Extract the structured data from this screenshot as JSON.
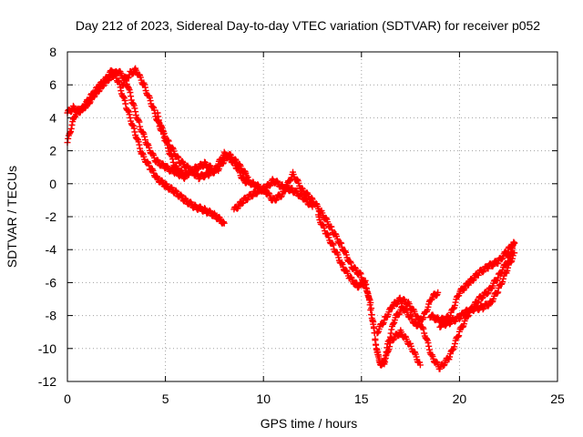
{
  "chart_data": {
    "type": "scatter",
    "title": "Day 212 of 2023, Sidereal Day-to-day VTEC variation (SDTVAR) for receiver p052",
    "xlabel": "GPS time / hours",
    "ylabel": "SDTVAR / TECUs",
    "xlim": [
      0,
      25
    ],
    "ylim": [
      -12,
      8
    ],
    "xticks": [
      0,
      5,
      10,
      15,
      20,
      25
    ],
    "yticks": [
      -12,
      -10,
      -8,
      -6,
      -4,
      -2,
      0,
      2,
      4,
      6,
      8
    ],
    "xtick_labels": [
      "0",
      "5",
      "10",
      "15",
      "20",
      "25"
    ],
    "ytick_labels": [
      "-12",
      "-10",
      "-8",
      "-6",
      "-4",
      "-2",
      "0",
      "2",
      "4",
      "6",
      "8"
    ],
    "grid": true,
    "marker": "+",
    "color": "#ff0000",
    "series": [
      {
        "name": "track-1",
        "x": [
          0.0,
          0.2,
          0.4,
          0.8,
          1.2,
          1.6,
          2.0,
          2.3,
          2.6,
          3.0,
          3.4,
          3.8,
          4.2,
          4.6,
          5.0,
          5.5,
          6.0,
          6.5,
          7.0,
          7.5,
          8.0
        ],
        "y": [
          2.5,
          3.4,
          4.2,
          4.6,
          5.3,
          5.9,
          6.4,
          6.9,
          6.2,
          4.7,
          3.3,
          1.8,
          1.0,
          0.3,
          -0.1,
          -0.5,
          -1.0,
          -1.4,
          -1.6,
          -1.9,
          -2.4
        ]
      },
      {
        "name": "track-2",
        "x": [
          0.0,
          0.3,
          0.6,
          1.0,
          1.4,
          1.8,
          2.2,
          2.6,
          3.0,
          3.3,
          3.7,
          4.1,
          4.5,
          5.0,
          5.5,
          6.0
        ],
        "y": [
          4.3,
          4.6,
          4.4,
          4.8,
          5.4,
          6.0,
          6.5,
          6.8,
          6.3,
          5.0,
          3.5,
          2.3,
          1.4,
          1.0,
          0.7,
          0.4
        ]
      },
      {
        "name": "track-3",
        "x": [
          2.8,
          3.2,
          3.5,
          3.9,
          4.3,
          4.7,
          5.2,
          5.7,
          6.2,
          6.7,
          7.2,
          7.7,
          8.2,
          8.7,
          9.2
        ],
        "y": [
          6.0,
          6.7,
          6.9,
          6.0,
          4.8,
          3.5,
          2.4,
          1.4,
          0.9,
          0.4,
          0.6,
          0.9,
          1.8,
          1.2,
          0.4
        ]
      },
      {
        "name": "track-4",
        "x": [
          4.6,
          5.0,
          5.5,
          6.0,
          6.5,
          7.0,
          7.5,
          8.0,
          8.5,
          9.0,
          9.5,
          10.0,
          10.5,
          11.0,
          11.5,
          12.0,
          12.5
        ],
        "y": [
          4.2,
          2.6,
          1.0,
          0.5,
          0.9,
          1.2,
          0.8,
          1.8,
          1.3,
          0.2,
          0.0,
          -0.4,
          0.2,
          -0.2,
          -0.4,
          -0.8,
          -1.4
        ]
      },
      {
        "name": "track-5",
        "x": [
          8.5,
          9.0,
          9.5,
          10.0,
          10.5,
          11.0,
          11.5,
          12.0,
          12.5,
          13.0,
          13.5,
          14.0,
          14.5,
          15.0,
          15.3,
          15.6,
          15.8,
          16.0,
          16.2,
          16.5,
          17.0,
          17.5,
          18.0
        ],
        "y": [
          -1.6,
          -1.0,
          -0.6,
          -0.3,
          -1.0,
          -0.6,
          0.6,
          -0.4,
          -1.0,
          -1.8,
          -2.8,
          -3.8,
          -5.0,
          -5.6,
          -6.5,
          -8.5,
          -10.2,
          -11.0,
          -10.8,
          -9.5,
          -9.0,
          -9.8,
          -11.0
        ]
      },
      {
        "name": "track-6",
        "x": [
          12.8,
          13.2,
          13.6,
          14.0,
          14.4,
          14.8,
          15.2,
          15.5,
          15.7,
          15.9,
          16.1,
          16.4,
          16.7,
          17.1,
          17.5,
          17.8,
          18.2,
          18.6,
          18.9
        ],
        "y": [
          -2.0,
          -3.0,
          -3.9,
          -4.9,
          -5.7,
          -6.2,
          -6.0,
          -7.5,
          -9.5,
          -10.8,
          -11.0,
          -9.5,
          -8.2,
          -7.5,
          -8.1,
          -8.6,
          -8.0,
          -6.9,
          -6.6
        ]
      },
      {
        "name": "track-7",
        "x": [
          15.8,
          16.2,
          16.6,
          17.0,
          17.4,
          17.8,
          18.2,
          18.6,
          19.0,
          19.5,
          20.0,
          20.5,
          21.0,
          21.5,
          22.0,
          22.5,
          22.8
        ],
        "y": [
          -9.0,
          -8.2,
          -7.4,
          -7.0,
          -7.3,
          -8.0,
          -9.0,
          -10.5,
          -11.2,
          -10.5,
          -9.0,
          -7.8,
          -7.0,
          -6.5,
          -5.6,
          -4.6,
          -3.6
        ]
      },
      {
        "name": "track-8",
        "x": [
          18.5,
          19.0,
          19.5,
          20.0,
          20.5,
          21.0,
          21.5,
          22.0,
          22.5,
          22.8
        ],
        "y": [
          -8.0,
          -8.3,
          -8.1,
          -6.6,
          -6.0,
          -5.4,
          -5.0,
          -4.7,
          -4.0,
          -3.6
        ]
      },
      {
        "name": "track-9",
        "x": [
          19.0,
          19.5,
          20.0,
          20.3,
          20.7,
          21.2,
          21.6,
          22.0,
          22.4,
          22.8
        ],
        "y": [
          -8.6,
          -8.4,
          -8.1,
          -7.8,
          -7.6,
          -7.5,
          -7.2,
          -6.4,
          -5.3,
          -4.2
        ]
      }
    ]
  }
}
